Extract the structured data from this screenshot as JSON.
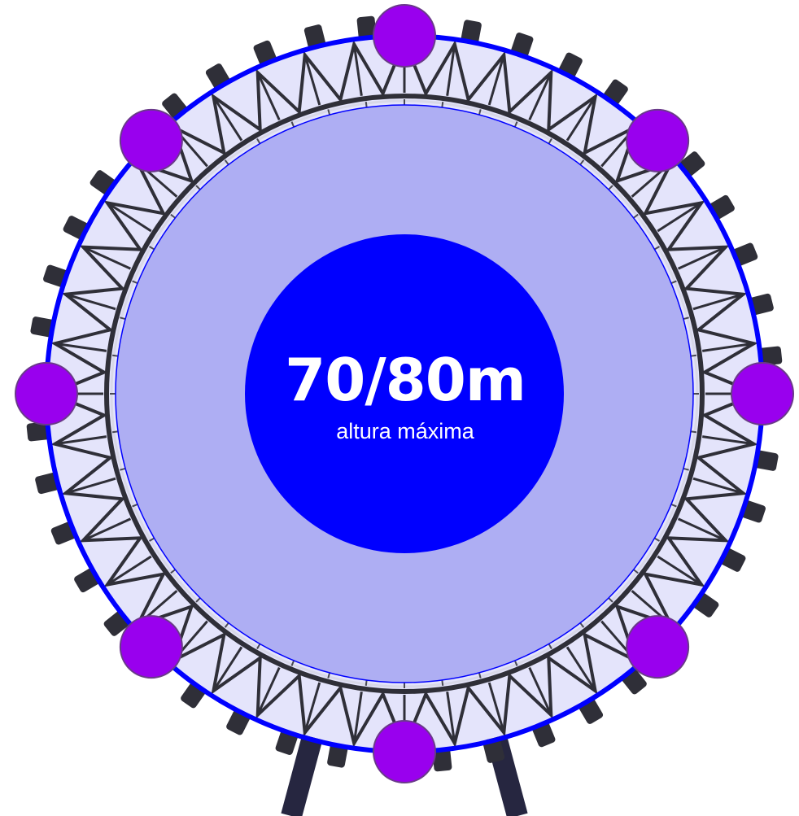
{
  "hub": {
    "value": "70/80m",
    "caption": "altura máxima"
  },
  "wheel": {
    "gondola_count": 44,
    "spoke_count": 48,
    "truss_segment_count": 44,
    "marker_count": 8
  },
  "colors": {
    "hub_fill": "#0000ff",
    "rim_stroke": "#0000ff",
    "inner_disc_fill": "#aeaef3",
    "outer_band_fill": "#e4e4fb",
    "marker_fill": "#9900ee",
    "structure_dark": "#2f2f38",
    "support_leg": "#262640"
  }
}
